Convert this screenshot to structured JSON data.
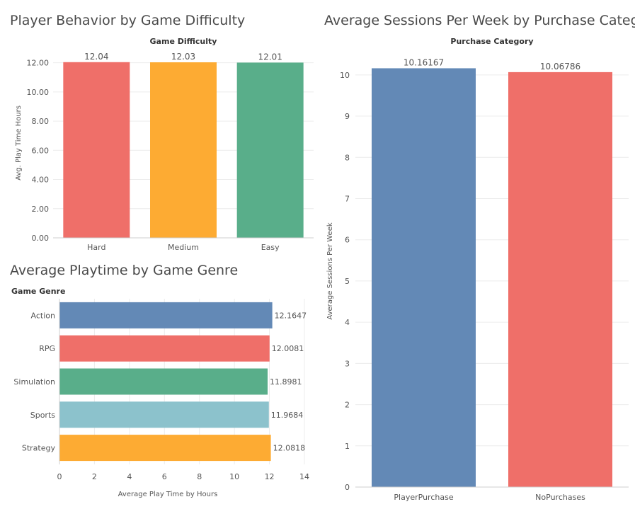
{
  "chart_data": [
    {
      "type": "bar",
      "title": "Player Behavior by Game Difficulty",
      "header": "Game Difficulty",
      "ylabel": "Avg. Play Time Hours",
      "categories": [
        "Hard",
        "Medium",
        "Easy"
      ],
      "values": [
        12.04,
        12.03,
        12.01
      ],
      "value_labels": [
        "12.04",
        "12.03",
        "12.01"
      ],
      "colors": [
        "#ef6f69",
        "#fdab33",
        "#59ae8a"
      ],
      "yticks": [
        "0.00",
        "2.00",
        "4.00",
        "6.00",
        "8.00",
        "10.00",
        "12.00"
      ],
      "ylim": [
        0,
        13
      ],
      "grid": true
    },
    {
      "type": "bar",
      "orientation": "horizontal",
      "title": "Average Playtime by Game Genre",
      "header": "Game Genre",
      "xlabel": "Average Play Time by Hours",
      "categories": [
        "Action",
        "RPG",
        "Simulation",
        "Sports",
        "Strategy"
      ],
      "values": [
        12.1647,
        12.0081,
        11.8981,
        11.9684,
        12.0818
      ],
      "value_labels": [
        "12.1647",
        "12.0081",
        "11.8981",
        "11.9684",
        "12.0818"
      ],
      "colors": [
        "#6389b6",
        "#ef6f69",
        "#59ae8a",
        "#8cc2cc",
        "#fdab33"
      ],
      "xticks": [
        "0",
        "2",
        "4",
        "6",
        "8",
        "10",
        "12",
        "14"
      ],
      "xlim": [
        0,
        14
      ],
      "grid": true
    },
    {
      "type": "bar",
      "title": "Average Sessions Per Week by Purchase Category",
      "header": "Purchase Category",
      "ylabel": "Average Sessions Per Week",
      "categories": [
        "PlayerPurchase",
        "NoPurchases"
      ],
      "values": [
        10.16167,
        10.06786
      ],
      "value_labels": [
        "10.16167",
        "10.06786"
      ],
      "colors": [
        "#6389b6",
        "#ef6f69"
      ],
      "yticks": [
        "0",
        "1",
        "2",
        "3",
        "4",
        "5",
        "6",
        "7",
        "8",
        "9",
        "10"
      ],
      "ylim": [
        0,
        10.65
      ],
      "grid": true
    }
  ]
}
